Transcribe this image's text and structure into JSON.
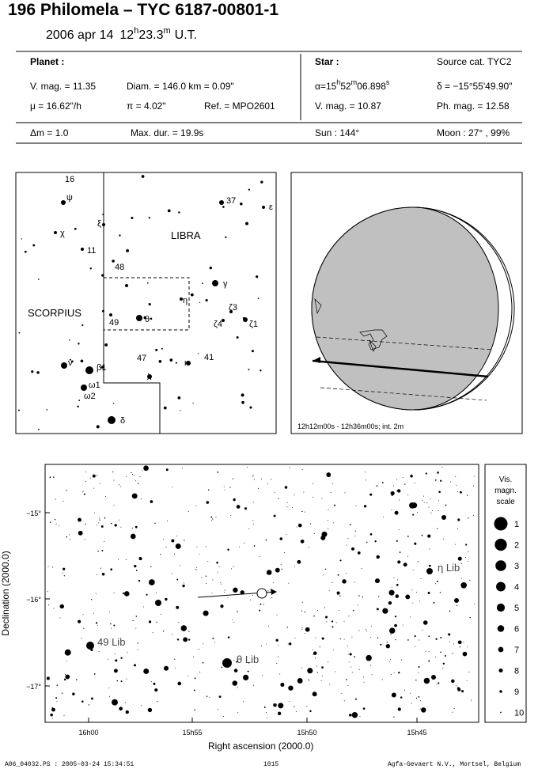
{
  "header": {
    "title": "196 Philomela  –  TYC 6187-00801-1",
    "date": "2006 apr 14",
    "time": [
      "12",
      "h",
      "23.3",
      "m",
      "U.T."
    ]
  },
  "info": {
    "planet": "Planet :",
    "vmag": "V. mag. = 11.35",
    "diam": "Diam. = 146.0 km = 0.09\"",
    "mu": "μ =  16.62\"/h",
    "pi": "π =  4.02\"",
    "ref": "Ref. = MPO2601",
    "dm": "Δm = 1.0",
    "maxdur": "Max. dur. = 19.9s",
    "star": "Star :",
    "source": "Source cat.  TYC2",
    "alpha": [
      "α=15",
      "h",
      "52",
      "m",
      "06.898",
      "s"
    ],
    "delta": "δ = −15°55'49.90\"",
    "svmag": "V. mag. = 10.87",
    "phmag": "Ph. mag. = 12.58",
    "sun": "Sun : 144°",
    "moon": "Moon :  27° , 99%"
  },
  "finder": {
    "labels": [
      "16",
      "ψ",
      "ξ",
      "χ",
      "11",
      "LIBRA",
      "37",
      "ε",
      "48",
      "γ",
      "η",
      "SCORPIUS",
      "49",
      "θ",
      "ζ3",
      "ζ4",
      "ζ1",
      "47",
      "κ",
      "41",
      "ν",
      "β1",
      "ω1",
      "ω2",
      "λ",
      "δ"
    ]
  },
  "globe": {
    "caption": "12h12m00s - 12h36m00s; int. 2m"
  },
  "chart": {
    "ylabel": "Declination (2000.0)",
    "xlabel": "Right ascension (2000.0)",
    "yticks": [
      "−15°",
      "−16°",
      "−17°"
    ],
    "xticks": [
      "16h00",
      "15h55",
      "15h50",
      "15h45"
    ],
    "stars": [
      "η Lib",
      "49 Lib",
      "θ Lib"
    ]
  },
  "scale": {
    "title": [
      "Vis.",
      "magn.",
      "scale"
    ],
    "items": [
      "1",
      "2",
      "3",
      "4",
      "5",
      "6",
      "7",
      "8",
      "9",
      "10"
    ]
  },
  "footer": {
    "file": "A06_04032.PS : 2005-03-24 15:34:51",
    "page": "1015",
    "company": "Agfa-Gevaert N.V., Mortsel, Belgium"
  }
}
